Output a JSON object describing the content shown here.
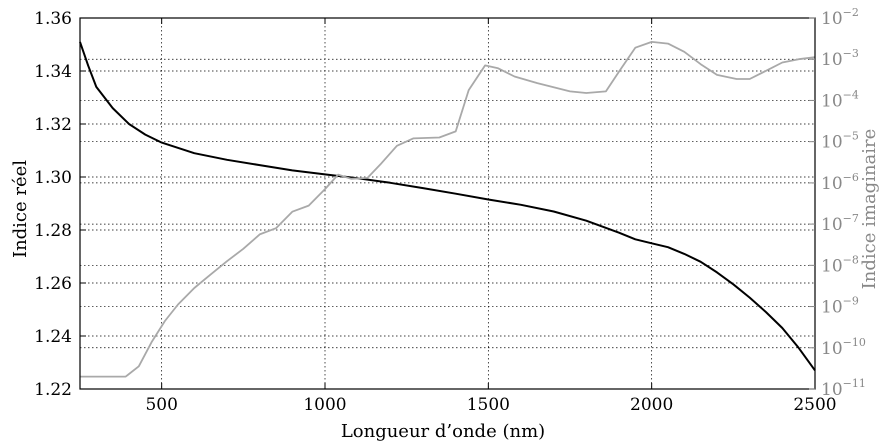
{
  "chart_data": {
    "type": "line",
    "xlabel": "Longueur d’onde (nm)",
    "ylabel": "Indice réel",
    "y2label": "Indice imaginaire",
    "xlim": [
      250,
      2500
    ],
    "ylim": [
      1.22,
      1.36
    ],
    "y2lim_log10": [
      -11,
      -2
    ],
    "y2scale": "log",
    "grid": true,
    "x_ticks": [
      "500",
      "1000",
      "1500",
      "2000",
      "2500"
    ],
    "y_ticks": [
      "1.22",
      "1.24",
      "1.26",
      "1.28",
      "1.30",
      "1.32",
      "1.34",
      "1.36"
    ],
    "y2_ticks": [
      {
        "base": "10",
        "exp": "−11"
      },
      {
        "base": "10",
        "exp": "−10"
      },
      {
        "base": "10",
        "exp": "−9"
      },
      {
        "base": "10",
        "exp": "−8"
      },
      {
        "base": "10",
        "exp": "−7"
      },
      {
        "base": "10",
        "exp": "−6"
      },
      {
        "base": "10",
        "exp": "−5"
      },
      {
        "base": "10",
        "exp": "−4"
      },
      {
        "base": "10",
        "exp": "−3"
      },
      {
        "base": "10",
        "exp": "−2"
      }
    ],
    "series": [
      {
        "axis": "left",
        "color": "#000000",
        "x": [
          250,
          275,
          300,
          350,
          400,
          450,
          500,
          600,
          700,
          800,
          900,
          1000,
          1100,
          1200,
          1300,
          1400,
          1500,
          1600,
          1700,
          1800,
          1900,
          1950,
          2000,
          2050,
          2100,
          2150,
          2200,
          2250,
          2300,
          2350,
          2400,
          2450,
          2500
        ],
        "y": [
          1.351,
          1.342,
          1.334,
          1.326,
          1.32,
          1.316,
          1.313,
          1.309,
          1.3065,
          1.3045,
          1.3025,
          1.301,
          1.2995,
          1.2978,
          1.2958,
          1.2937,
          1.2915,
          1.2895,
          1.287,
          1.2835,
          1.279,
          1.2765,
          1.275,
          1.2735,
          1.271,
          1.268,
          1.264,
          1.2595,
          1.2545,
          1.249,
          1.243,
          1.2355,
          1.227
        ]
      },
      {
        "axis": "right",
        "color": "#a9a9a9",
        "x": [
          250,
          300,
          350,
          390,
          430,
          470,
          510,
          550,
          600,
          650,
          700,
          750,
          800,
          850,
          900,
          950,
          1000,
          1040,
          1080,
          1130,
          1170,
          1220,
          1270,
          1350,
          1400,
          1440,
          1490,
          1530,
          1580,
          1650,
          1750,
          1800,
          1860,
          1900,
          1950,
          2000,
          2050,
          2100,
          2150,
          2200,
          2260,
          2300,
          2350,
          2400,
          2450,
          2500
        ],
        "y_log10": [
          -10.7,
          -10.7,
          -10.7,
          -10.7,
          -10.45,
          -9.85,
          -9.35,
          -8.95,
          -8.55,
          -8.22,
          -7.9,
          -7.6,
          -7.25,
          -7.1,
          -6.7,
          -6.55,
          -6.15,
          -5.8,
          -5.9,
          -5.88,
          -5.55,
          -5.1,
          -4.92,
          -4.9,
          -4.75,
          -3.75,
          -3.15,
          -3.22,
          -3.42,
          -3.58,
          -3.78,
          -3.82,
          -3.78,
          -3.3,
          -2.72,
          -2.58,
          -2.62,
          -2.82,
          -3.12,
          -3.38,
          -3.48,
          -3.48,
          -3.28,
          -3.08,
          -3.0,
          -2.95
        ]
      }
    ]
  }
}
